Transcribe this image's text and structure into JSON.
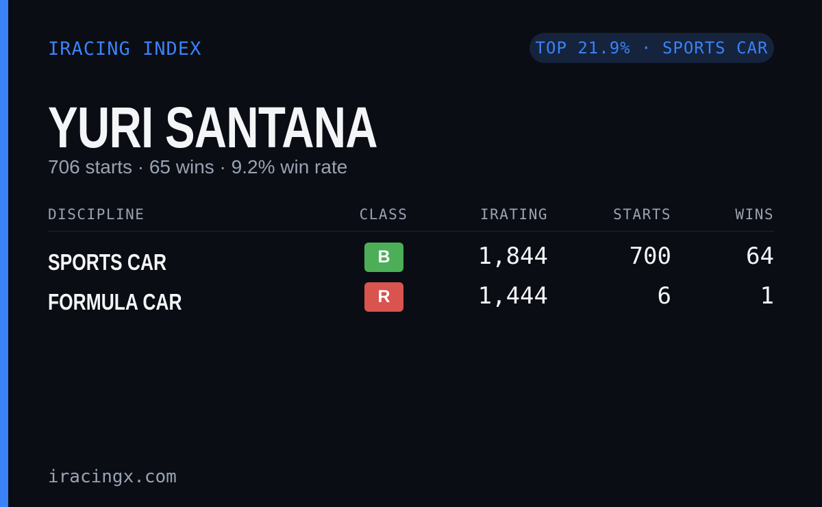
{
  "header": {
    "brand": "IRACING INDEX",
    "badge": "TOP 21.9% · SPORTS CAR"
  },
  "driver": {
    "name": "YURI SANTANA",
    "summary": "706 starts · 65 wins · 9.2% win rate"
  },
  "table": {
    "columns": [
      "DISCIPLINE",
      "CLASS",
      "IRATING",
      "STARTS",
      "WINS"
    ],
    "rows": [
      {
        "discipline": "SPORTS CAR",
        "class": "B",
        "class_color": "#4caf58",
        "irating": "1,844",
        "starts": "700",
        "wins": "64"
      },
      {
        "discipline": "FORMULA CAR",
        "class": "R",
        "class_color": "#d9534f",
        "irating": "1,444",
        "starts": "6",
        "wins": "1"
      }
    ]
  },
  "footer": {
    "site": "iracingx.com"
  }
}
